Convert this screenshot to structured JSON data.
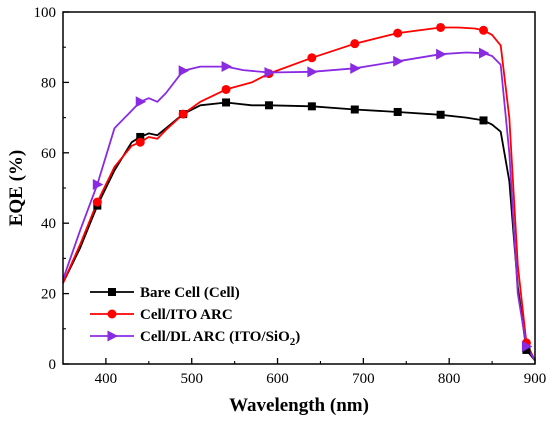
{
  "chart_data": {
    "type": "line",
    "xlabel": "Wavelength (nm)",
    "ylabel": "EQE (%)",
    "xlim": [
      350,
      900
    ],
    "ylim": [
      0,
      100
    ],
    "xticks": [
      400,
      500,
      600,
      700,
      800,
      900
    ],
    "yticks": [
      0,
      20,
      40,
      60,
      80,
      100
    ],
    "grid": false,
    "legend_position": "bottom-left",
    "series": [
      {
        "name": "Bare Cell (Cell)",
        "color": "#000000",
        "marker": "square",
        "x": [
          350,
          370,
          390,
          410,
          430,
          440,
          450,
          460,
          470,
          490,
          510,
          540,
          570,
          590,
          640,
          690,
          740,
          790,
          820,
          840,
          850,
          860,
          870,
          880,
          890,
          900
        ],
        "y": [
          23,
          33,
          45,
          55,
          63,
          64.5,
          65.5,
          65,
          67,
          71,
          73.5,
          74.3,
          73.5,
          73.5,
          73.2,
          72.3,
          71.6,
          70.8,
          70,
          69.2,
          68,
          66,
          52,
          22,
          4,
          1
        ],
        "marker_x": [
          390,
          440,
          490,
          540,
          590,
          640,
          690,
          740,
          790,
          840,
          890
        ]
      },
      {
        "name": "Cell/ITO ARC",
        "color": "#ff0000",
        "marker": "circle",
        "x": [
          350,
          370,
          390,
          410,
          430,
          440,
          450,
          460,
          470,
          490,
          510,
          540,
          570,
          590,
          640,
          690,
          740,
          790,
          810,
          830,
          840,
          850,
          860,
          870,
          880,
          890,
          900
        ],
        "y": [
          23,
          34,
          46,
          56,
          62,
          63,
          64.5,
          64,
          66.5,
          71,
          74.5,
          78,
          80,
          82.5,
          87,
          91,
          94,
          95.6,
          95.6,
          95.3,
          94.8,
          93.5,
          90.5,
          70,
          28,
          6,
          1
        ],
        "marker_x": [
          390,
          440,
          490,
          540,
          590,
          640,
          690,
          740,
          790,
          840,
          890
        ]
      },
      {
        "name": "Cell/DL ARC (ITO/SiO",
        "name_subscript": "2",
        "name_suffix": ")",
        "color": "#8a2be2",
        "marker": "triangle-right",
        "x": [
          350,
          370,
          390,
          410,
          430,
          440,
          450,
          460,
          470,
          490,
          510,
          540,
          560,
          590,
          640,
          690,
          740,
          790,
          820,
          840,
          850,
          860,
          870,
          880,
          890,
          900
        ],
        "y": [
          24,
          38,
          51,
          67,
          72,
          74.5,
          75.5,
          74.5,
          77,
          83.3,
          84.5,
          84.5,
          83.5,
          82.8,
          83,
          84,
          86,
          88,
          88.5,
          88.3,
          87.5,
          85,
          60,
          20,
          5,
          1
        ],
        "marker_x": [
          390,
          440,
          490,
          540,
          590,
          640,
          690,
          740,
          790,
          840,
          890
        ]
      }
    ]
  }
}
